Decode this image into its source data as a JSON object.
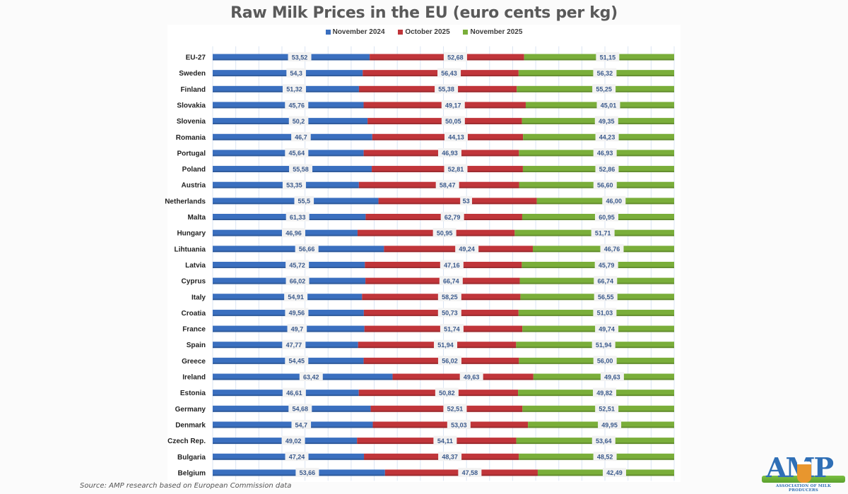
{
  "chart_data": {
    "type": "bar",
    "orientation": "horizontal",
    "stacking": "percent",
    "title": "Raw Milk Prices in the EU (euro cents per kg)",
    "xlabel": "",
    "ylabel": "",
    "grid": true,
    "legend_position": "top",
    "categories": [
      "EU-27",
      "Sweden",
      "Finland",
      "Slovakia",
      "Slovenia",
      "Romania",
      "Portugal",
      "Poland",
      "Austria",
      "Netherlands",
      "Malta",
      "Hungary",
      "Lihtuania",
      "Latvia",
      "Cyprus",
      "Italy",
      "Croatia",
      "France",
      "Spain",
      "Greece",
      "Ireland",
      "Estonia",
      "Germany",
      "Denmark",
      "Czech Rep.",
      "Bulgaria",
      "Belgium"
    ],
    "series": [
      {
        "name": "November 2024",
        "color": "#3a6fbf",
        "values": [
          53.52,
          54.3,
          51.32,
          45.76,
          50.2,
          46.7,
          45.64,
          55.58,
          53.35,
          55.5,
          61.33,
          46.96,
          56.66,
          45.72,
          66.02,
          54.91,
          49.56,
          49.7,
          47.77,
          54.45,
          63.42,
          46.61,
          54.68,
          54.7,
          49.02,
          47.24,
          53.66
        ],
        "labels": [
          "53,52",
          "54,3",
          "51,32",
          "45,76",
          "50,2",
          "46,7",
          "45,64",
          "55,58",
          "53,35",
          "55,5",
          "61,33",
          "46,96",
          "56,66",
          "45,72",
          "66,02",
          "54,91",
          "49,56",
          "49,7",
          "47,77",
          "54,45",
          "63,42",
          "46,61",
          "54,68",
          "54,7",
          "49,02",
          "47,24",
          "53,66"
        ]
      },
      {
        "name": "October 2025",
        "color": "#c0353a",
        "values": [
          52.68,
          56.43,
          55.38,
          49.17,
          50.05,
          44.13,
          46.93,
          52.81,
          58.47,
          53,
          62.79,
          50.95,
          49.24,
          47.16,
          66.74,
          58.25,
          50.73,
          51.74,
          51.94,
          56.02,
          49.63,
          50.82,
          52.51,
          53.03,
          54.11,
          48.37,
          47.58
        ],
        "labels": [
          "52,68",
          "56,43",
          "55,38",
          "49,17",
          "50,05",
          "44,13",
          "46,93",
          "52,81",
          "58,47",
          "53",
          "62,79",
          "50,95",
          "49,24",
          "47,16",
          "66,74",
          "58,25",
          "50,73",
          "51,74",
          "51,94",
          "56,02",
          "49,63",
          "50,82",
          "52,51",
          "53,03",
          "54,11",
          "48,37",
          "47,58"
        ]
      },
      {
        "name": "November 2025",
        "color": "#7aae3a",
        "values": [
          51.15,
          56.32,
          55.25,
          45.01,
          49.35,
          44.23,
          46.93,
          52.86,
          56.6,
          46.0,
          60.95,
          51.71,
          46.76,
          45.79,
          66.74,
          56.55,
          51.03,
          49.74,
          51.94,
          56.0,
          49.63,
          49.82,
          52.51,
          49.95,
          53.64,
          48.52,
          42.49
        ],
        "labels": [
          "51,15",
          "56,32",
          "55,25",
          "45,01",
          "49,35",
          "44,23",
          "46,93",
          "52,86",
          "56,60",
          "46,00",
          "60,95",
          "51,71",
          "46,76",
          "45,79",
          "66,74",
          "56,55",
          "51,03",
          "49,74",
          "51,94",
          "56,00",
          "49,63",
          "49,82",
          "52,51",
          "49,95",
          "53,64",
          "48,52",
          "42,49"
        ]
      }
    ],
    "xlim": [
      0,
      100
    ],
    "gridline_step_percent": 5
  },
  "source": "Source: AMP research based on European Commission data",
  "logo": {
    "letters": "AMP",
    "subtitle": "ASSOCIATION OF MILK PRODUCERS"
  }
}
